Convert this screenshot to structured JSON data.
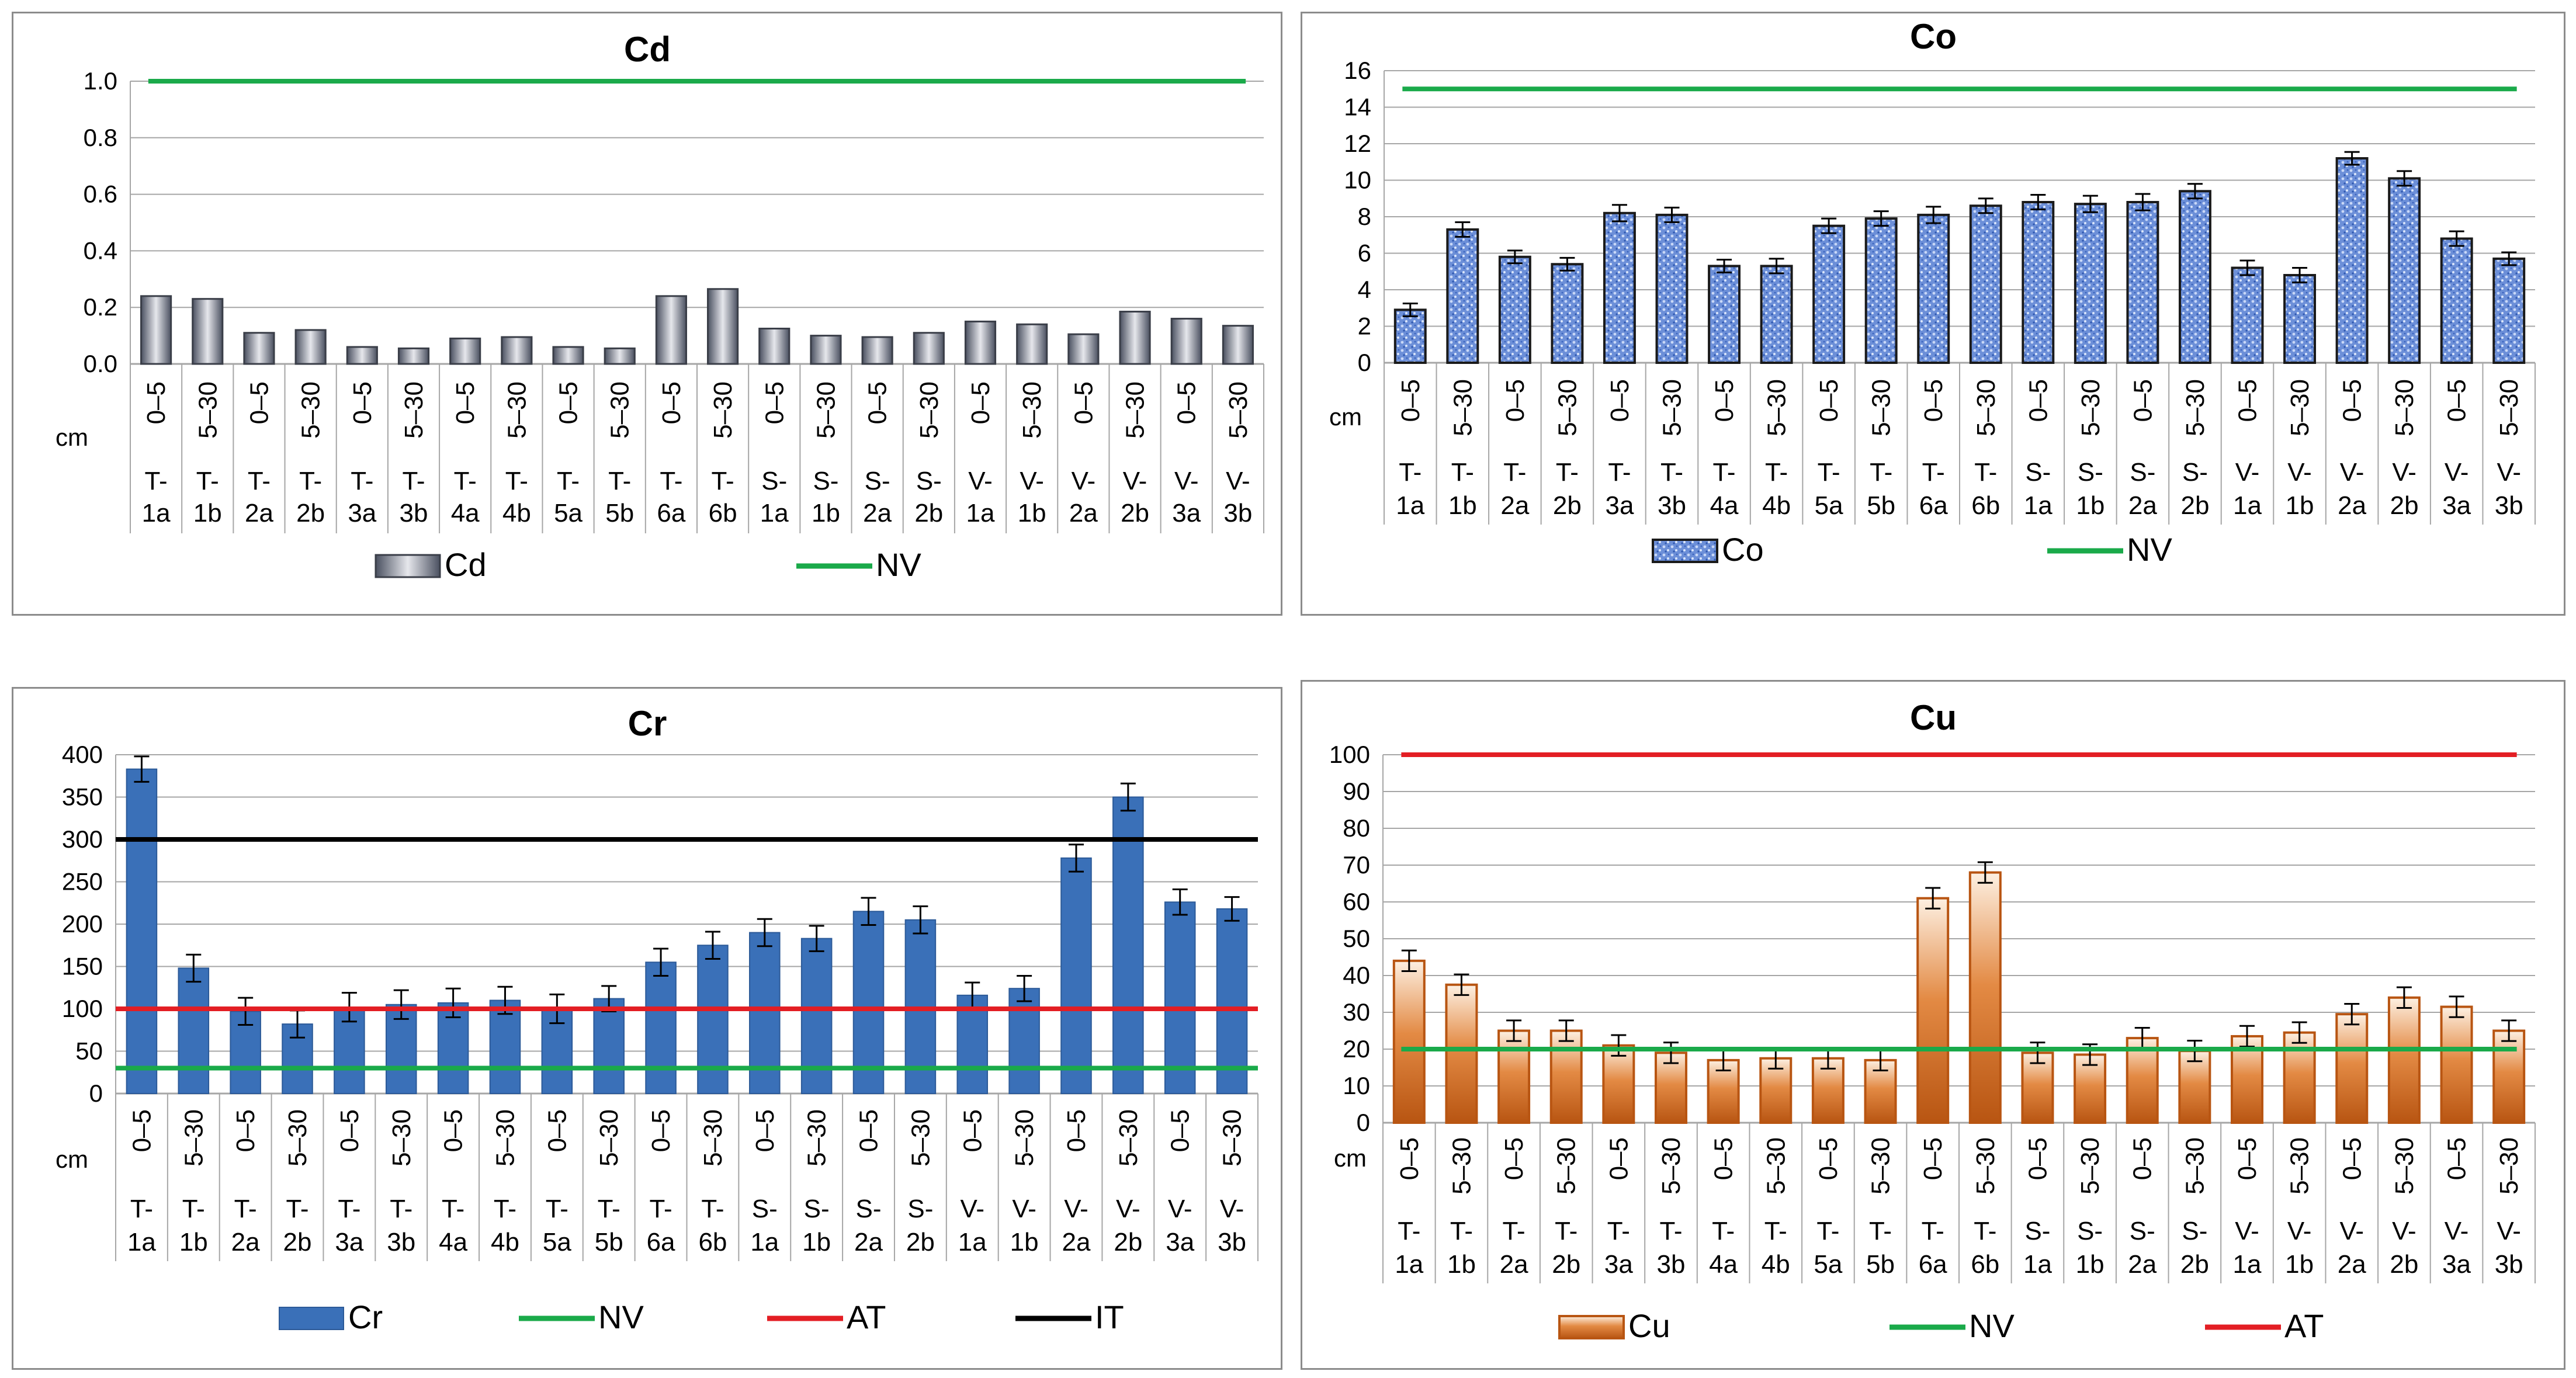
{
  "categories": {
    "depth": [
      "0–5",
      "5–30",
      "0–5",
      "5–30",
      "0–5",
      "5–30",
      "0–5",
      "5–30",
      "0–5",
      "5–30",
      "0–5",
      "5–30",
      "0–5",
      "5–30",
      "0–5",
      "5–30",
      "0–5",
      "5–30",
      "0–5",
      "5–30",
      "0–5",
      "5–30"
    ],
    "site_top": [
      "T-",
      "T-",
      "T-",
      "T-",
      "T-",
      "T-",
      "T-",
      "T-",
      "T-",
      "T-",
      "T-",
      "T-",
      "S-",
      "S-",
      "S-",
      "S-",
      "V-",
      "V-",
      "V-",
      "V-",
      "V-",
      "V-"
    ],
    "site_bottom": [
      "1a",
      "1b",
      "2a",
      "2b",
      "3a",
      "3b",
      "4a",
      "4b",
      "5a",
      "5b",
      "6a",
      "6b",
      "1a",
      "1b",
      "2a",
      "2b",
      "1a",
      "1b",
      "2a",
      "2b",
      "3a",
      "3b"
    ],
    "unit": "cm"
  },
  "chart_data": [
    {
      "type": "bar",
      "title": "Cd",
      "ylim": [
        0,
        1.0
      ],
      "yticks": [
        "0.0",
        "0.2",
        "0.4",
        "0.6",
        "0.8",
        "1.0"
      ],
      "series": [
        {
          "name": "Cd",
          "values": [
            0.24,
            0.23,
            0.11,
            0.12,
            0.06,
            0.055,
            0.09,
            0.095,
            0.06,
            0.055,
            0.24,
            0.265,
            0.125,
            0.1,
            0.095,
            0.11,
            0.15,
            0.14,
            0.105,
            0.185,
            0.16,
            0.135
          ],
          "errors": null
        }
      ],
      "lines": [
        {
          "name": "NV",
          "value": 1.0,
          "color": "#1aaa4a"
        }
      ]
    },
    {
      "type": "bar",
      "title": "Co",
      "ylim": [
        0,
        16
      ],
      "yticks": [
        "0",
        "2",
        "4",
        "6",
        "8",
        "10",
        "12",
        "14",
        "16"
      ],
      "series": [
        {
          "name": "Co",
          "values": [
            2.9,
            7.3,
            5.8,
            5.4,
            8.2,
            8.1,
            5.3,
            5.3,
            7.5,
            7.9,
            8.1,
            8.6,
            8.8,
            8.7,
            8.8,
            9.4,
            5.2,
            4.8,
            11.2,
            10.1,
            6.8,
            5.7
          ],
          "errors": [
            0.35,
            0.4,
            0.35,
            0.35,
            0.45,
            0.4,
            0.35,
            0.4,
            0.4,
            0.4,
            0.45,
            0.4,
            0.4,
            0.45,
            0.45,
            0.4,
            0.4,
            0.4,
            0.35,
            0.4,
            0.4,
            0.35
          ]
        }
      ],
      "lines": [
        {
          "name": "NV",
          "value": 15,
          "color": "#1aaa4a"
        }
      ]
    },
    {
      "type": "bar",
      "title": "Cr",
      "ylim": [
        0,
        400
      ],
      "yticks": [
        "0",
        "50",
        "100",
        "150",
        "200",
        "250",
        "300",
        "350",
        "400"
      ],
      "series": [
        {
          "name": "Cr",
          "values": [
            383,
            148,
            97,
            82,
            102,
            105,
            107,
            110,
            100,
            112,
            155,
            175,
            190,
            183,
            215,
            205,
            116,
            124,
            278,
            350,
            226,
            218
          ],
          "errors": [
            15,
            16,
            16,
            16,
            17,
            17,
            17,
            16,
            17,
            15,
            16,
            16,
            16,
            15,
            16,
            16,
            15,
            15,
            16,
            16,
            15,
            14
          ]
        }
      ],
      "lines": [
        {
          "name": "NV",
          "value": 30,
          "color": "#1aaa4a"
        },
        {
          "name": "AT",
          "value": 100,
          "color": "#e31e24"
        },
        {
          "name": "IT",
          "value": 300,
          "color": "#000000"
        }
      ]
    },
    {
      "type": "bar",
      "title": "Cu",
      "ylim": [
        0,
        100
      ],
      "yticks": [
        "0",
        "10",
        "20",
        "30",
        "40",
        "50",
        "60",
        "70",
        "80",
        "90",
        "100"
      ],
      "series": [
        {
          "name": "Cu",
          "values": [
            44,
            37.5,
            25,
            25,
            21,
            19,
            17,
            17.5,
            17.5,
            17,
            61,
            68,
            19,
            18.5,
            23,
            19.5,
            23.5,
            24.5,
            29.5,
            34,
            31.5,
            25
          ],
          "errors": [
            2.8,
            2.8,
            2.8,
            2.8,
            2.8,
            2.8,
            2.8,
            2.8,
            2.8,
            2.8,
            2.8,
            2.8,
            2.8,
            2.8,
            2.8,
            2.8,
            2.8,
            2.8,
            2.8,
            2.8,
            2.8,
            2.8
          ]
        }
      ],
      "lines": [
        {
          "name": "NV",
          "value": 20,
          "color": "#1aaa4a"
        },
        {
          "name": "AT",
          "value": 100,
          "color": "#e31e24"
        }
      ]
    }
  ]
}
